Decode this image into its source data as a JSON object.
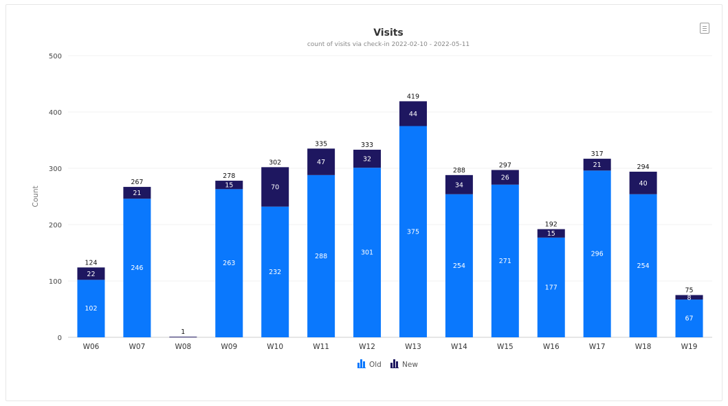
{
  "chart_data": {
    "type": "bar",
    "stacked": true,
    "title": "Visits",
    "subtitle": "count of visits via check-in 2022-02-10 - 2022-05-11",
    "xlabel": "",
    "ylabel": "Count",
    "ylim": [
      0,
      500
    ],
    "yticks": [
      0,
      100,
      200,
      300,
      400,
      500
    ],
    "grid": true,
    "legend_position": "bottom-center",
    "categories": [
      "W06",
      "W07",
      "W08",
      "W09",
      "W10",
      "W11",
      "W12",
      "W13",
      "W14",
      "W15",
      "W16",
      "W17",
      "W18",
      "W19"
    ],
    "series": [
      {
        "name": "Old",
        "color": "#0a78fd",
        "values": [
          102,
          246,
          0,
          263,
          232,
          288,
          301,
          375,
          254,
          271,
          177,
          296,
          254,
          67
        ]
      },
      {
        "name": "New",
        "color": "#1e1760",
        "values": [
          22,
          21,
          1,
          15,
          70,
          47,
          32,
          44,
          34,
          26,
          15,
          21,
          40,
          8
        ]
      }
    ],
    "totals": [
      124,
      267,
      1,
      278,
      302,
      335,
      333,
      419,
      288,
      297,
      192,
      317,
      294,
      75
    ],
    "gridline_color": "#f0f0f0",
    "axis_color": "#cccccc"
  },
  "ui": {
    "menu_icon": "hamburger-menu-icon",
    "legend_icon": "bar-chart-icon"
  }
}
